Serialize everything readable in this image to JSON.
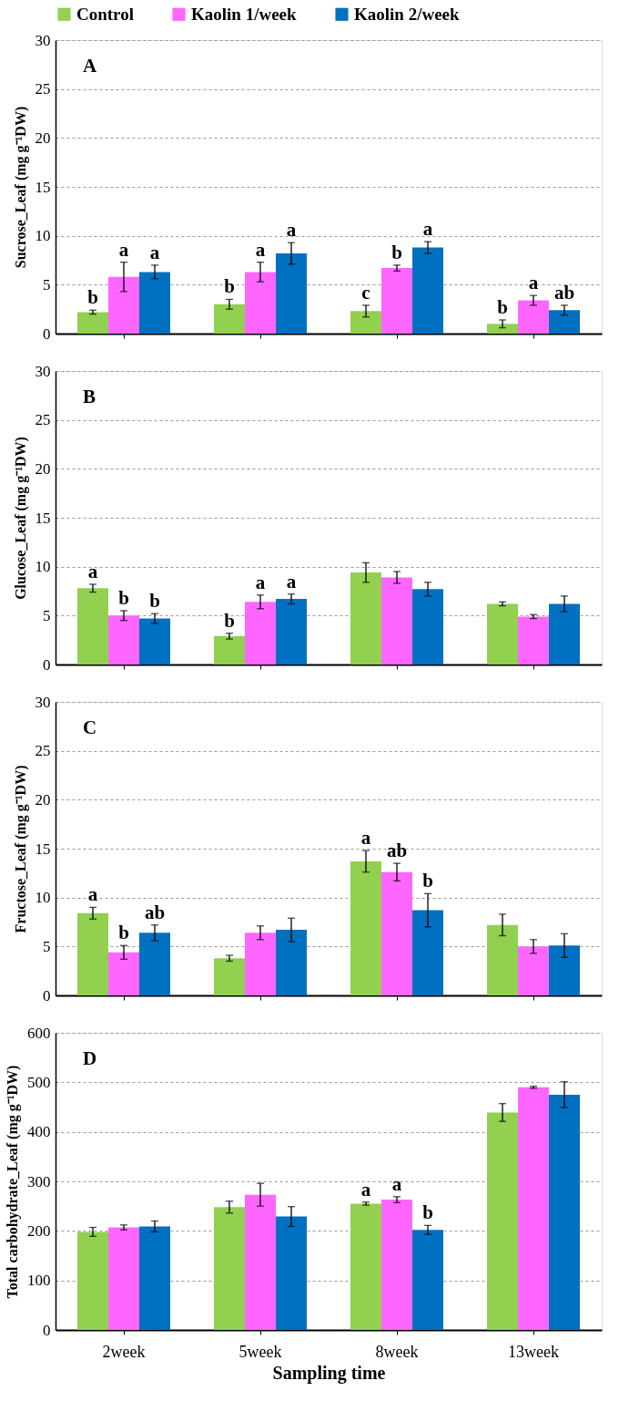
{
  "chart_data": [
    {
      "type": "bar",
      "ylabel": "Sucrose_Leaf (mg g⁻¹DW)",
      "categories": [
        null,
        null,
        null,
        null
      ],
      "ylim": [
        0,
        30
      ],
      "yticks": [
        0,
        5,
        10,
        15,
        20,
        25,
        30
      ],
      "grid": "y",
      "legend": "top",
      "tick_labels": "y",
      "annotations": [
        "A"
      ],
      "series": [
        {
          "name": "Control",
          "color": "#92d050",
          "values": [
            2.2,
            3.0,
            2.3,
            1.0
          ],
          "errors": [
            0.2,
            0.5,
            0.6,
            0.4
          ],
          "value_labels": [
            "b",
            "b",
            "c",
            "b"
          ]
        },
        {
          "name": "Kaolin 1/week",
          "color": "#ff66ff",
          "values": [
            5.8,
            6.3,
            6.7,
            3.4
          ],
          "errors": [
            1.5,
            1.0,
            0.3,
            0.5
          ],
          "value_labels": [
            "a",
            "a",
            "b",
            "a"
          ]
        },
        {
          "name": "Kaolin 2/week",
          "color": "#0070c0",
          "values": [
            6.3,
            8.2,
            8.8,
            2.4
          ],
          "errors": [
            0.7,
            1.1,
            0.6,
            0.5
          ],
          "value_labels": [
            "a",
            "a",
            "a",
            "ab"
          ]
        }
      ]
    },
    {
      "type": "bar",
      "ylabel": "Glucose_Leaf (mg g⁻¹DW)",
      "categories": [
        null,
        null,
        null,
        null
      ],
      "ylim": [
        0,
        30
      ],
      "yticks": [
        0,
        5,
        10,
        15,
        20,
        25,
        30
      ],
      "grid": "y",
      "tick_labels": "y",
      "annotations": [
        "B"
      ],
      "series": [
        {
          "color": "#92d050",
          "values": [
            7.8,
            2.9,
            9.4,
            6.2
          ],
          "errors": [
            0.4,
            0.3,
            1.0,
            0.2
          ],
          "value_labels": [
            "a",
            "b",
            null,
            null
          ]
        },
        {
          "color": "#ff66ff",
          "values": [
            5.0,
            6.4,
            8.9,
            4.9
          ],
          "errors": [
            0.5,
            0.7,
            0.6,
            0.2
          ],
          "value_labels": [
            "b",
            "a",
            null,
            null
          ]
        },
        {
          "color": "#0070c0",
          "values": [
            4.7,
            6.7,
            7.7,
            6.2
          ],
          "errors": [
            0.5,
            0.5,
            0.7,
            0.8
          ],
          "value_labels": [
            "b",
            "a",
            null,
            null
          ]
        }
      ]
    },
    {
      "type": "bar",
      "ylabel": "Fructose_Leaf (mg g⁻¹DW)",
      "categories": [
        null,
        null,
        null,
        null
      ],
      "ylim": [
        0,
        30
      ],
      "yticks": [
        0,
        5,
        10,
        15,
        20,
        25,
        30
      ],
      "grid": "y",
      "tick_labels": "y",
      "annotations": [
        "C"
      ],
      "series": [
        {
          "color": "#92d050",
          "values": [
            8.4,
            3.8,
            13.7,
            7.2
          ],
          "errors": [
            0.6,
            0.3,
            1.1,
            1.1
          ],
          "value_labels": [
            "a",
            null,
            "a",
            null
          ]
        },
        {
          "color": "#ff66ff",
          "values": [
            4.4,
            6.4,
            12.6,
            5.0
          ],
          "errors": [
            0.7,
            0.7,
            0.9,
            0.7
          ],
          "value_labels": [
            "b",
            null,
            "ab",
            null
          ]
        },
        {
          "color": "#0070c0",
          "values": [
            6.4,
            6.7,
            8.7,
            5.1
          ],
          "errors": [
            0.8,
            1.2,
            1.7,
            1.2
          ],
          "value_labels": [
            "ab",
            null,
            "b",
            null
          ]
        }
      ]
    },
    {
      "type": "bar",
      "ylabel": "Total carbohydrate_Leaf (mg g⁻¹DW)",
      "xlabel": "Sampling time",
      "categories": [
        "2week",
        "5week",
        "8week",
        "13week"
      ],
      "ylim": [
        0,
        600
      ],
      "yticks": [
        0,
        100,
        200,
        300,
        400,
        500,
        600
      ],
      "grid": "y",
      "annotations": [
        "D"
      ],
      "series": [
        {
          "color": "#92d050",
          "values": [
            198,
            248,
            255,
            439
          ],
          "errors": [
            9,
            12,
            3,
            18
          ],
          "value_labels": [
            null,
            null,
            "a",
            null
          ]
        },
        {
          "color": "#ff66ff",
          "values": [
            207,
            273,
            263,
            490
          ],
          "errors": [
            5,
            23,
            6,
            2
          ],
          "value_labels": [
            null,
            null,
            "a",
            null
          ]
        },
        {
          "color": "#0070c0",
          "values": [
            209,
            229,
            202,
            475
          ],
          "errors": [
            11,
            20,
            9,
            26
          ],
          "value_labels": [
            null,
            null,
            "b",
            null
          ]
        }
      ]
    }
  ]
}
